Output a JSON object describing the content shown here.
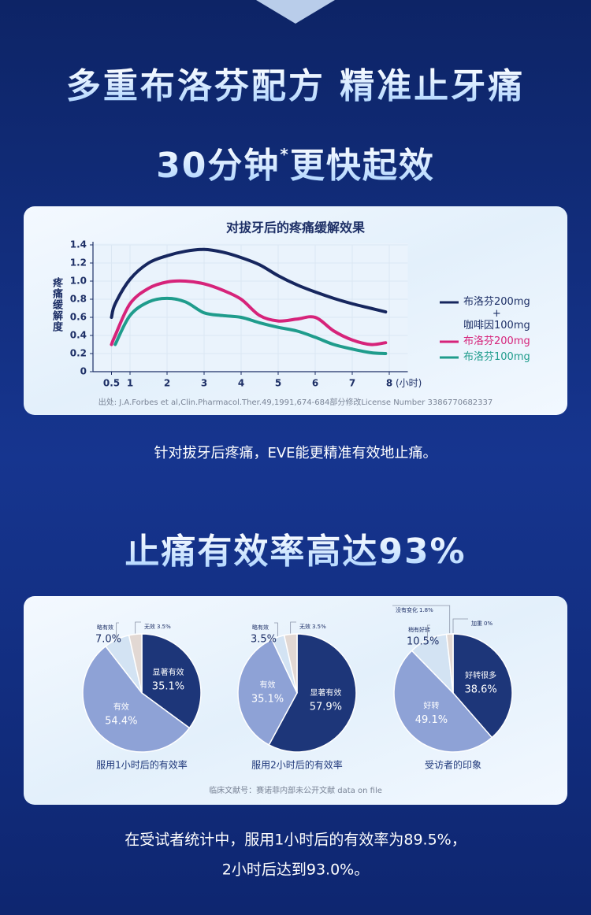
{
  "header": {
    "title": "多重布洛芬配方  精准止牙痛",
    "subtitle_before": "30分钟",
    "subtitle_mark": "*",
    "subtitle_after": "更快起效"
  },
  "chart_data": [
    {
      "type": "line",
      "title": "对拔牙后的疼痛缓解效果",
      "y_label": "疼痛缓解度",
      "x_unit": "(小时)",
      "source": "出处: J.A.Forbes et al,Clin.Pharmacol.Ther.49,1991,674-684部分修改License Number 3386770682337",
      "x": [
        0.5,
        0.6,
        1,
        1.5,
        2,
        2.5,
        3,
        3.5,
        4,
        4.5,
        5,
        5.5,
        6,
        6.5,
        7,
        7.5,
        7.9
      ],
      "series": [
        {
          "name": "布洛芬200mg\n+\n咖啡因100mg",
          "color": "#16265e",
          "values": [
            0.6,
            0.75,
            1.02,
            1.2,
            1.28,
            1.33,
            1.35,
            1.32,
            1.26,
            1.18,
            1.06,
            0.96,
            0.88,
            0.81,
            0.75,
            0.7,
            0.66
          ]
        },
        {
          "name": "布洛芬200mg",
          "color": "#d6237a",
          "values": [
            0.3,
            0.4,
            0.75,
            0.92,
            0.99,
            1.0,
            0.97,
            0.9,
            0.8,
            0.62,
            0.56,
            0.58,
            0.6,
            0.45,
            0.35,
            0.3,
            0.32
          ]
        },
        {
          "name": "布洛芬100mg",
          "color": "#1f9c8c",
          "values": [
            null,
            0.3,
            0.62,
            0.77,
            0.81,
            0.77,
            0.65,
            0.62,
            0.6,
            0.54,
            0.49,
            0.45,
            0.38,
            0.3,
            0.25,
            0.21,
            0.2
          ]
        }
      ],
      "xlim": [
        0,
        8.5
      ],
      "ylim": [
        0,
        1.4
      ],
      "xticks": [
        0.5,
        1,
        2,
        3,
        4,
        5,
        6,
        7,
        8
      ],
      "yticks": [
        0,
        0.2,
        0.4,
        0.6,
        0.8,
        {
          "value": 1,
          "label": "1.0"
        },
        1.2,
        1.4
      ],
      "grid": true
    },
    {
      "type": "pie",
      "title": "服用1小时后的有效率",
      "categories": [
        "显著有效",
        "有效",
        "略有效",
        "无效"
      ],
      "values": [
        35.1,
        54.4,
        7.0,
        3.5
      ],
      "value_labels": [
        "35.1%",
        "54.4%",
        "7.0%",
        "3.5%"
      ],
      "colors": [
        "#1d3679",
        "#8ea2d6",
        "#d3e3f3",
        "#e2d8d3"
      ]
    },
    {
      "type": "pie",
      "title": "服用2小时后的有效率",
      "categories": [
        "显著有效",
        "有效",
        "略有效",
        "无效"
      ],
      "values": [
        57.9,
        35.1,
        3.5,
        3.5
      ],
      "value_labels": [
        "57.9%",
        "35.1%",
        "3.5%",
        "3.5%"
      ],
      "colors": [
        "#1d3679",
        "#8ea2d6",
        "#d3e3f3",
        "#e2d8d3"
      ]
    },
    {
      "type": "pie",
      "title": "受访者的印象",
      "categories": [
        "好转很多",
        "好转",
        "稍有好转",
        "没有变化",
        "加重"
      ],
      "values": [
        38.6,
        49.1,
        10.5,
        1.8,
        0
      ],
      "value_labels": [
        "38.6%",
        "49.1%",
        "10.5%",
        "1.8%",
        "0%"
      ],
      "colors": [
        "#1d3679",
        "#8ea2d6",
        "#d3e3f3",
        "#e2d8d3",
        "#c9c2c0"
      ]
    }
  ],
  "line_caption": "针对拔牙后疼痛，EVE能更精准有效地止痛。",
  "section2_title": "止痛有效率高达93%",
  "pie_source": "临床文献号：赛诺菲内部未公开文献 data on file",
  "summary": [
    "在受试者统计中，服用1小时后的有效率为89.5%，",
    "2小时后达到93.0%。"
  ]
}
